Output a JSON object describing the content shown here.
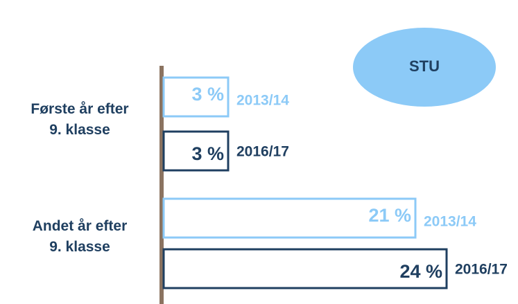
{
  "chart_data": {
    "type": "hbar_outline",
    "title": "STU",
    "categories": [
      "Første år efter\n9. klasse",
      "Andet år efter\n9. klasse"
    ],
    "series": [
      {
        "name": "2013/14",
        "color": "#8ccaf7",
        "values": [
          3,
          21
        ],
        "value_labels": [
          "3 %",
          "21 %"
        ]
      },
      {
        "name": "2016/17",
        "color": "#1f3f60",
        "values": [
          3,
          24
        ],
        "value_labels": [
          "3 %",
          "24 %"
        ]
      }
    ],
    "axis_color": "#8b7360",
    "title_fill": "#8ccaf7"
  }
}
